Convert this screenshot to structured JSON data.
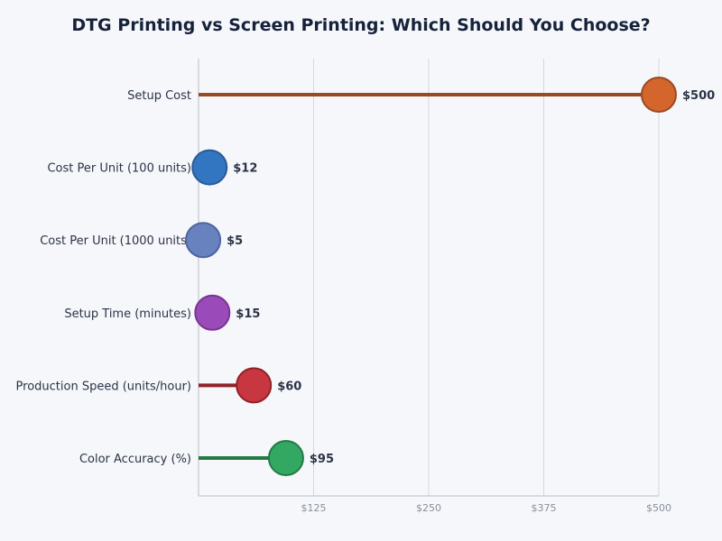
{
  "chart_data": {
    "type": "lollipop",
    "title": "DTG Printing vs Screen Printing: Which Should You Choose?",
    "categories": [
      "Setup Cost",
      "Cost Per Unit (100 units)",
      "Cost Per Unit (1000 units)",
      "Setup Time (minutes)",
      "Production Speed (units/hour)",
      "Color Accuracy (%)"
    ],
    "values": [
      500,
      12,
      5,
      15,
      60,
      95
    ],
    "value_labels": [
      "$500",
      "$12",
      "$5",
      "$15",
      "$60",
      "$95"
    ],
    "colors": [
      "#d4652c",
      "#3276c2",
      "#6882c0",
      "#9b4bb9",
      "#c8363f",
      "#33a862"
    ],
    "stem_colors": [
      "#9a4a22",
      "#2a5a98",
      "#4f64a0",
      "#7a3594",
      "#8e2228",
      "#237a45"
    ],
    "xlim": [
      0,
      500
    ],
    "xticks": [
      125,
      250,
      375,
      500
    ],
    "xtick_labels": [
      "$125",
      "$250",
      "$375",
      "$500"
    ],
    "grid": "vertical",
    "xlabel": "",
    "ylabel": ""
  }
}
